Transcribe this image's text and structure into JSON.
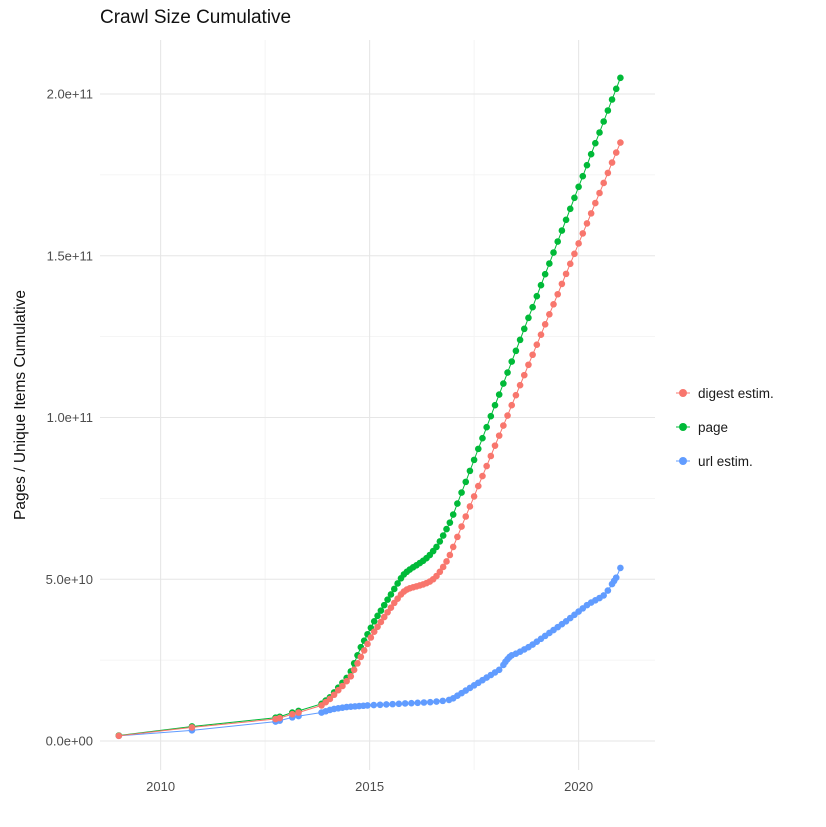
{
  "chart_data": {
    "type": "scatter",
    "title": "Crawl Size Cumulative",
    "xlabel": "",
    "ylabel": "Pages / Unique Items Cumulative",
    "value_scale": 1000000000,
    "x_axis": {
      "ticks": [
        {
          "label": "2010",
          "value": 2010
        },
        {
          "label": "2015",
          "value": 2015
        },
        {
          "label": "2020",
          "value": 2020
        }
      ],
      "minor": [
        2012.5,
        2017.5
      ],
      "range": [
        2008.55,
        2021.85
      ]
    },
    "y_axis": {
      "ticks": [
        {
          "label": "0.0e+00",
          "value": 0
        },
        {
          "label": "5.0e+10",
          "value": 50
        },
        {
          "label": "1.0e+11",
          "value": 100
        },
        {
          "label": "1.5e+11",
          "value": 150
        },
        {
          "label": "2.0e+11",
          "value": 200
        }
      ],
      "minor": [
        25,
        75,
        125,
        175
      ],
      "range": [
        0,
        216
      ]
    },
    "grid_color_major": "#e6e6e6",
    "grid_color_minor": "#f2f2f2",
    "tick_label_color": "#4d4d4d",
    "legend": {
      "position": "right",
      "entries": [
        {
          "label": "digest estim.",
          "color": "#F8766D"
        },
        {
          "label": "page",
          "color": "#00BA38"
        },
        {
          "label": "url estim.",
          "color": "#619CFF"
        }
      ]
    },
    "series": [
      {
        "name": "digest estim.",
        "color": "#F8766D",
        "points": [
          [
            2009.0,
            1.6
          ],
          [
            2010.75,
            4.2
          ],
          [
            2012.75,
            6.8
          ],
          [
            2012.85,
            7.1
          ],
          [
            2013.15,
            8.3
          ],
          [
            2013.3,
            8.8
          ],
          [
            2013.85,
            11
          ],
          [
            2013.95,
            12
          ],
          [
            2014.05,
            13
          ],
          [
            2014.15,
            14.3
          ],
          [
            2014.25,
            15.7
          ],
          [
            2014.35,
            17
          ],
          [
            2014.45,
            18.5
          ],
          [
            2014.55,
            20
          ],
          [
            2014.63,
            22
          ],
          [
            2014.71,
            24
          ],
          [
            2014.79,
            26
          ],
          [
            2014.87,
            28
          ],
          [
            2014.95,
            30
          ],
          [
            2015.03,
            32
          ],
          [
            2015.11,
            33.8
          ],
          [
            2015.19,
            35.3
          ],
          [
            2015.27,
            36.8
          ],
          [
            2015.35,
            38.3
          ],
          [
            2015.43,
            39.8
          ],
          [
            2015.51,
            41.2
          ],
          [
            2015.59,
            42.7
          ],
          [
            2015.67,
            44
          ],
          [
            2015.75,
            45.3
          ],
          [
            2015.82,
            46.2
          ],
          [
            2015.89,
            46.8
          ],
          [
            2015.96,
            47.2
          ],
          [
            2016.04,
            47.5
          ],
          [
            2016.12,
            47.8
          ],
          [
            2016.2,
            48.1
          ],
          [
            2016.28,
            48.4
          ],
          [
            2016.36,
            48.8
          ],
          [
            2016.44,
            49.3
          ],
          [
            2016.52,
            50
          ],
          [
            2016.6,
            51
          ],
          [
            2016.68,
            52.3
          ],
          [
            2016.76,
            53.8
          ],
          [
            2016.84,
            55.5
          ],
          [
            2016.92,
            57.5
          ],
          [
            2017.0,
            60
          ],
          [
            2017.1,
            63.1
          ],
          [
            2017.2,
            66.3
          ],
          [
            2017.3,
            69.4
          ],
          [
            2017.4,
            72.5
          ],
          [
            2017.5,
            75.6
          ],
          [
            2017.6,
            78.8
          ],
          [
            2017.7,
            81.9
          ],
          [
            2017.8,
            85
          ],
          [
            2017.9,
            88.1
          ],
          [
            2018.0,
            91.3
          ],
          [
            2018.1,
            94.4
          ],
          [
            2018.2,
            97.5
          ],
          [
            2018.3,
            100.6
          ],
          [
            2018.4,
            103.8
          ],
          [
            2018.5,
            106.9
          ],
          [
            2018.6,
            110
          ],
          [
            2018.7,
            113.1
          ],
          [
            2018.8,
            116.3
          ],
          [
            2018.9,
            119.4
          ],
          [
            2019.0,
            122.5
          ],
          [
            2019.1,
            125.6
          ],
          [
            2019.2,
            128.8
          ],
          [
            2019.3,
            131.9
          ],
          [
            2019.4,
            135
          ],
          [
            2019.5,
            138.1
          ],
          [
            2019.6,
            141.3
          ],
          [
            2019.7,
            144.4
          ],
          [
            2019.8,
            147.5
          ],
          [
            2019.9,
            150.6
          ],
          [
            2020.0,
            153.8
          ],
          [
            2020.1,
            156.9
          ],
          [
            2020.2,
            160
          ],
          [
            2020.3,
            163.1
          ],
          [
            2020.4,
            166.3
          ],
          [
            2020.5,
            169.4
          ],
          [
            2020.6,
            172.5
          ],
          [
            2020.7,
            175.6
          ],
          [
            2020.8,
            178.8
          ],
          [
            2020.9,
            181.9
          ],
          [
            2021.0,
            185
          ]
        ]
      },
      {
        "name": "page",
        "color": "#00BA38",
        "points": [
          [
            2009.0,
            1.7
          ],
          [
            2010.75,
            4.5
          ],
          [
            2012.75,
            7.2
          ],
          [
            2012.85,
            7.5
          ],
          [
            2013.15,
            8.8
          ],
          [
            2013.3,
            9.3
          ],
          [
            2013.85,
            11.5
          ],
          [
            2013.95,
            12.5
          ],
          [
            2014.05,
            13.5
          ],
          [
            2014.15,
            15
          ],
          [
            2014.25,
            16.5
          ],
          [
            2014.35,
            18
          ],
          [
            2014.45,
            19.5
          ],
          [
            2014.55,
            21.5
          ],
          [
            2014.63,
            24
          ],
          [
            2014.71,
            26.5
          ],
          [
            2014.79,
            29
          ],
          [
            2014.87,
            31
          ],
          [
            2014.95,
            33
          ],
          [
            2015.03,
            35
          ],
          [
            2015.11,
            37
          ],
          [
            2015.19,
            38.7
          ],
          [
            2015.27,
            40.3
          ],
          [
            2015.35,
            42
          ],
          [
            2015.43,
            43.7
          ],
          [
            2015.51,
            45.3
          ],
          [
            2015.59,
            47
          ],
          [
            2015.67,
            48.7
          ],
          [
            2015.75,
            50.3
          ],
          [
            2015.82,
            51.5
          ],
          [
            2015.89,
            52.3
          ],
          [
            2015.96,
            53
          ],
          [
            2016.04,
            53.7
          ],
          [
            2016.12,
            54.3
          ],
          [
            2016.2,
            55
          ],
          [
            2016.28,
            55.7
          ],
          [
            2016.36,
            56.5
          ],
          [
            2016.44,
            57.5
          ],
          [
            2016.52,
            58.7
          ],
          [
            2016.6,
            60
          ],
          [
            2016.68,
            61.7
          ],
          [
            2016.76,
            63.5
          ],
          [
            2016.84,
            65.5
          ],
          [
            2016.92,
            67.5
          ],
          [
            2017.0,
            70
          ],
          [
            2017.1,
            73.4
          ],
          [
            2017.2,
            76.8
          ],
          [
            2017.3,
            80.1
          ],
          [
            2017.4,
            83.5
          ],
          [
            2017.5,
            86.9
          ],
          [
            2017.6,
            90.3
          ],
          [
            2017.7,
            93.6
          ],
          [
            2017.8,
            97
          ],
          [
            2017.9,
            100.4
          ],
          [
            2018.0,
            103.8
          ],
          [
            2018.1,
            107.1
          ],
          [
            2018.2,
            110.5
          ],
          [
            2018.3,
            113.9
          ],
          [
            2018.4,
            117.3
          ],
          [
            2018.5,
            120.6
          ],
          [
            2018.6,
            124
          ],
          [
            2018.7,
            127.4
          ],
          [
            2018.8,
            130.8
          ],
          [
            2018.9,
            134.1
          ],
          [
            2019.0,
            137.5
          ],
          [
            2019.1,
            140.9
          ],
          [
            2019.2,
            144.3
          ],
          [
            2019.3,
            147.6
          ],
          [
            2019.4,
            151
          ],
          [
            2019.5,
            154.4
          ],
          [
            2019.6,
            157.8
          ],
          [
            2019.7,
            161.1
          ],
          [
            2019.8,
            164.5
          ],
          [
            2019.9,
            167.9
          ],
          [
            2020.0,
            171.3
          ],
          [
            2020.1,
            174.6
          ],
          [
            2020.2,
            178
          ],
          [
            2020.3,
            181.4
          ],
          [
            2020.4,
            184.8
          ],
          [
            2020.5,
            188.1
          ],
          [
            2020.6,
            191.5
          ],
          [
            2020.7,
            194.9
          ],
          [
            2020.8,
            198.3
          ],
          [
            2020.9,
            201.6
          ],
          [
            2021.0,
            205
          ]
        ]
      },
      {
        "name": "url estim.",
        "color": "#619CFF",
        "points": [
          [
            2009.0,
            1.6
          ],
          [
            2010.75,
            3.3
          ],
          [
            2012.75,
            6
          ],
          [
            2012.85,
            6.3
          ],
          [
            2013.15,
            7.3
          ],
          [
            2013.3,
            7.7
          ],
          [
            2013.85,
            8.8
          ],
          [
            2013.95,
            9.2
          ],
          [
            2014.05,
            9.6
          ],
          [
            2014.15,
            9.9
          ],
          [
            2014.25,
            10.1
          ],
          [
            2014.35,
            10.3
          ],
          [
            2014.45,
            10.5
          ],
          [
            2014.55,
            10.6
          ],
          [
            2014.65,
            10.7
          ],
          [
            2014.75,
            10.8
          ],
          [
            2014.85,
            10.9
          ],
          [
            2014.95,
            11
          ],
          [
            2015.1,
            11.1
          ],
          [
            2015.25,
            11.2
          ],
          [
            2015.4,
            11.3
          ],
          [
            2015.55,
            11.4
          ],
          [
            2015.7,
            11.5
          ],
          [
            2015.85,
            11.6
          ],
          [
            2016.0,
            11.7
          ],
          [
            2016.15,
            11.8
          ],
          [
            2016.3,
            11.9
          ],
          [
            2016.45,
            12
          ],
          [
            2016.6,
            12.2
          ],
          [
            2016.75,
            12.4
          ],
          [
            2016.9,
            12.7
          ],
          [
            2017.0,
            13.2
          ],
          [
            2017.1,
            14
          ],
          [
            2017.2,
            14.8
          ],
          [
            2017.3,
            15.6
          ],
          [
            2017.4,
            16.4
          ],
          [
            2017.5,
            17.2
          ],
          [
            2017.6,
            18
          ],
          [
            2017.7,
            18.8
          ],
          [
            2017.8,
            19.6
          ],
          [
            2017.9,
            20.4
          ],
          [
            2018.0,
            21.2
          ],
          [
            2018.1,
            22
          ],
          [
            2018.2,
            23.5
          ],
          [
            2018.25,
            24.5
          ],
          [
            2018.3,
            25.3
          ],
          [
            2018.35,
            26
          ],
          [
            2018.4,
            26.5
          ],
          [
            2018.5,
            27
          ],
          [
            2018.6,
            27.6
          ],
          [
            2018.7,
            28.3
          ],
          [
            2018.8,
            29
          ],
          [
            2018.9,
            29.8
          ],
          [
            2019.0,
            30.7
          ],
          [
            2019.1,
            31.6
          ],
          [
            2019.2,
            32.5
          ],
          [
            2019.3,
            33.4
          ],
          [
            2019.4,
            34.3
          ],
          [
            2019.5,
            35.2
          ],
          [
            2019.6,
            36.1
          ],
          [
            2019.7,
            37
          ],
          [
            2019.8,
            38
          ],
          [
            2019.9,
            39
          ],
          [
            2020.0,
            40
          ],
          [
            2020.1,
            41
          ],
          [
            2020.2,
            42
          ],
          [
            2020.3,
            42.8
          ],
          [
            2020.4,
            43.5
          ],
          [
            2020.5,
            44.2
          ],
          [
            2020.6,
            45
          ],
          [
            2020.7,
            46.5
          ],
          [
            2020.8,
            48.5
          ],
          [
            2020.85,
            49.5
          ],
          [
            2020.9,
            50.5
          ],
          [
            2021.0,
            53.5
          ]
        ]
      }
    ]
  }
}
